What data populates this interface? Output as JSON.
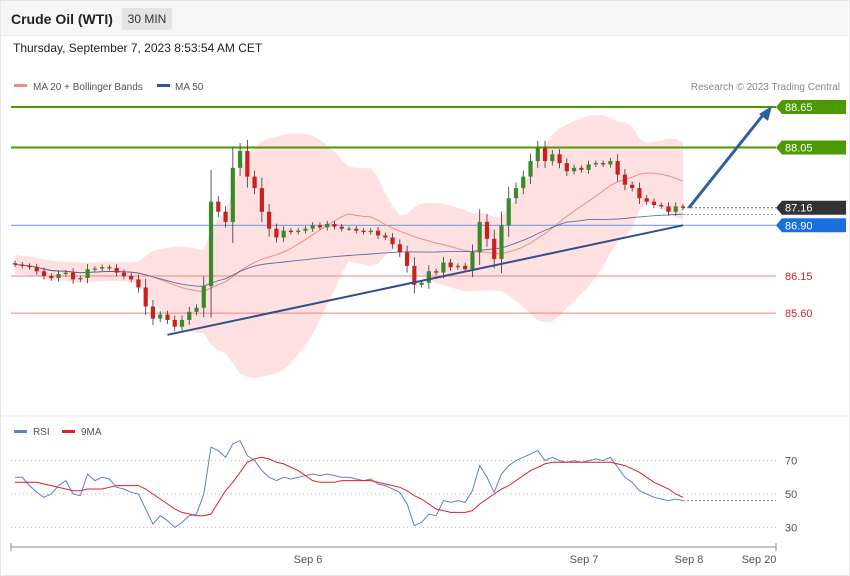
{
  "header": {
    "title": "Crude Oil (WTI)",
    "timeframe": "30 MIN",
    "datetime": "Thursday, September 7, 2023 8:53:54 AM CET"
  },
  "price_panel": {
    "legend": [
      {
        "label": "MA 20 + Bollinger Bands",
        "color": "#f28b82"
      },
      {
        "label": "MA 50",
        "color": "#2f5597"
      }
    ],
    "credit": "Research © 2023 Trading Central",
    "levels": [
      {
        "value": "88.65",
        "color": "#4c9a00",
        "kind": "resistance-tag"
      },
      {
        "value": "88.05",
        "color": "#4c9a00",
        "kind": "resistance-tag"
      },
      {
        "value": "87.16",
        "color": "#333333",
        "kind": "last-price-tag"
      },
      {
        "value": "86.90",
        "color": "#1a6fe0",
        "kind": "pivot-tag"
      },
      {
        "value": "86.15",
        "color": "#d62728",
        "kind": "support-text"
      },
      {
        "value": "85.60",
        "color": "#d62728",
        "kind": "support-text"
      }
    ]
  },
  "rsi_panel": {
    "legend": [
      {
        "label": "RSI",
        "color": "#5b7fd6"
      },
      {
        "label": "9MA",
        "color": "#e02020"
      }
    ],
    "ticks": [
      "70",
      "50",
      "30"
    ]
  },
  "x_axis": {
    "labels": [
      "Sep 6",
      "Sep 7",
      "Sep 8",
      "Sep 20"
    ]
  },
  "colors": {
    "up": "#3a8a2a",
    "down": "#cc1f1f",
    "band": "#ffdcdc",
    "trend": "#2f4f8f",
    "arrow": "#2f5fa0"
  },
  "chart_data": {
    "type": "candlestick",
    "y_range": [
      84.1,
      88.95
    ],
    "close": [
      86.32,
      86.3,
      86.28,
      86.22,
      86.15,
      86.12,
      86.18,
      86.2,
      86.1,
      86.12,
      86.25,
      86.26,
      86.28,
      86.27,
      86.2,
      86.15,
      86.1,
      85.98,
      85.7,
      85.52,
      85.58,
      85.5,
      85.4,
      85.5,
      85.62,
      85.68,
      86.0,
      87.25,
      87.1,
      86.95,
      87.75,
      88.0,
      87.62,
      87.45,
      87.1,
      86.85,
      86.72,
      86.82,
      86.8,
      86.82,
      86.85,
      86.9,
      86.87,
      86.92,
      86.88,
      86.85,
      86.85,
      86.82,
      86.8,
      86.82,
      86.75,
      86.72,
      86.62,
      86.5,
      86.3,
      86.02,
      86.05,
      86.22,
      86.2,
      86.35,
      86.28,
      86.3,
      86.25,
      86.5,
      86.95,
      86.7,
      86.4,
      86.9,
      87.3,
      87.45,
      87.62,
      87.85,
      88.05,
      87.85,
      87.95,
      87.82,
      87.7,
      87.75,
      87.72,
      87.8,
      87.82,
      87.8,
      87.85,
      87.65,
      87.5,
      87.45,
      87.3,
      87.25,
      87.2,
      87.18,
      87.1,
      87.18,
      87.16
    ],
    "rsi": [
      60,
      60,
      55,
      51,
      48,
      50,
      55,
      58,
      50,
      49,
      62,
      58,
      60,
      59,
      54,
      53,
      51,
      50,
      41,
      32,
      37,
      34,
      30,
      33,
      37,
      38,
      50,
      78,
      76,
      72,
      80,
      82,
      73,
      70,
      64,
      60,
      58,
      60,
      59,
      60,
      61,
      62,
      61,
      62,
      61,
      60,
      60,
      59,
      58,
      59,
      56,
      55,
      53,
      51,
      44,
      31,
      33,
      38,
      37,
      46,
      45,
      46,
      45,
      52,
      67,
      60,
      51,
      62,
      67,
      70,
      72,
      74,
      76,
      70,
      72,
      70,
      69,
      70,
      69,
      70,
      71,
      70,
      72,
      66,
      60,
      57,
      52,
      50,
      48,
      47,
      46,
      47,
      46
    ],
    "rsi_ma9": [
      57,
      57,
      57,
      57,
      56,
      55,
      54,
      53,
      52,
      52,
      53,
      53,
      53,
      54,
      55,
      55,
      55,
      55,
      53,
      50,
      47,
      44,
      41,
      39,
      38,
      37,
      37,
      38,
      45,
      52,
      57,
      63,
      69,
      71,
      72,
      71,
      69,
      68,
      66,
      64,
      61,
      58,
      57,
      57,
      57,
      58,
      58,
      58,
      58,
      58,
      57,
      56,
      55,
      54,
      52,
      49,
      47,
      44,
      41,
      40,
      39,
      39,
      39,
      40,
      44,
      47,
      50,
      53,
      55,
      58,
      61,
      64,
      66,
      68,
      69,
      69,
      69,
      69,
      69,
      69,
      69,
      69,
      69,
      68,
      67,
      65,
      63,
      60,
      57,
      55,
      53,
      50,
      48
    ]
  }
}
